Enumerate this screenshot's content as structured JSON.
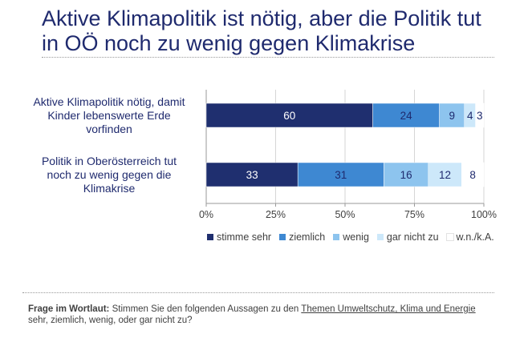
{
  "title_lines": [
    "Aktive Klimapolitik ist nötig, aber die Politik tut",
    "in OÖ noch zu wenig gegen Klimakrise"
  ],
  "chart_data": {
    "type": "bar",
    "orientation": "horizontal",
    "stacked": true,
    "categories": [
      [
        "Aktive Klimapolitik nötig, damit",
        "Kinder lebenswerte Erde",
        "vorfinden"
      ],
      [
        "Politik in Oberösterreich tut",
        "noch zu wenig gegen die",
        "Klimakrise"
      ]
    ],
    "series": [
      {
        "name": "stimme sehr",
        "color": "#1f2f6f",
        "label_color": "#ffffff",
        "values": [
          60,
          33
        ]
      },
      {
        "name": "ziemlich",
        "color": "#3e88d2",
        "label_color": "#1f2a6e",
        "values": [
          24,
          31
        ]
      },
      {
        "name": "wenig",
        "color": "#8dc4ee",
        "label_color": "#1f2a6e",
        "values": [
          9,
          16
        ]
      },
      {
        "name": "gar nicht zu",
        "color": "#cde8fa",
        "label_color": "#1f2a6e",
        "values": [
          4,
          12
        ]
      },
      {
        "name": "w.n./k.A.",
        "color": "#ffffff",
        "label_color": "#1f2a6e",
        "values": [
          3,
          8
        ]
      }
    ],
    "xlim": [
      0,
      100
    ],
    "xticks": [
      "0%",
      "25%",
      "50%",
      "75%",
      "100%"
    ],
    "grid": true,
    "legend": "bottom"
  },
  "footer": {
    "label": "Frage im Wortlaut:",
    "text_before": " Stimmen Sie den folgenden Aussagen zu den ",
    "underlined": "Themen Umweltschutz, Klima und Energie",
    "text_after": " sehr, ziemlich, wenig, oder gar nicht zu?"
  }
}
